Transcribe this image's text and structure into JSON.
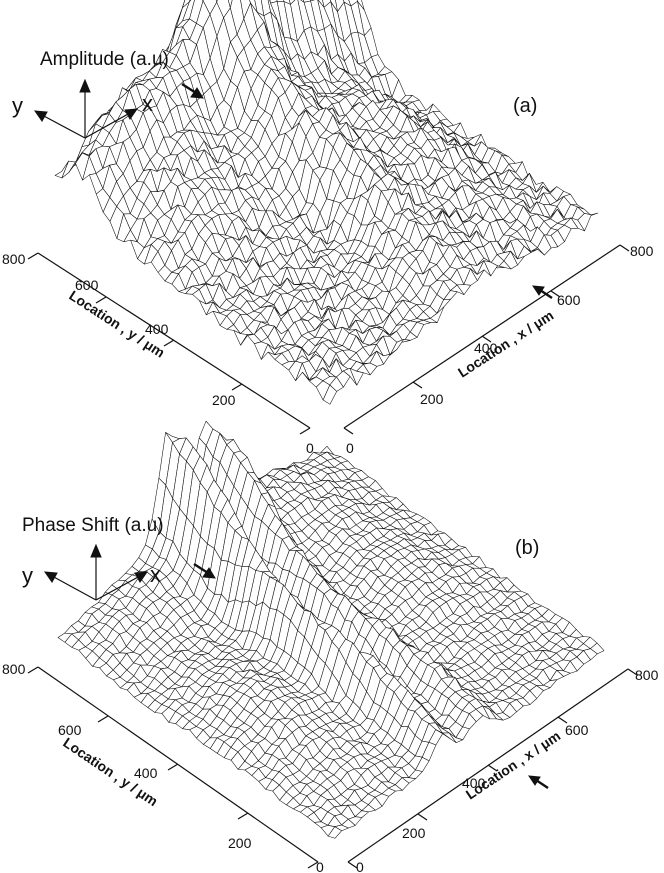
{
  "chart_data": [
    {
      "type": "surface",
      "panel": "(a)",
      "z_label": "Amplitude (a.u)",
      "direction_labels": {
        "x": "x",
        "y": "y"
      },
      "xlabel": "Location , x / μm",
      "ylabel": "Location , y / μm",
      "xlim": [
        0,
        800
      ],
      "ylim": [
        0,
        800
      ],
      "x_ticks": [
        "0",
        "200",
        "400",
        "600",
        "800"
      ],
      "y_ticks": [
        "0",
        "200",
        "400",
        "600",
        "800"
      ],
      "grid_size": 40,
      "features": [
        {
          "kind": "ridge",
          "x_um": 470,
          "y_um": 650,
          "height": 0.95
        },
        {
          "kind": "ridge",
          "x_um": 640,
          "y_um": 790,
          "height": 1.0
        },
        {
          "kind": "plateau",
          "x_um": 300,
          "y_um": 720,
          "height": 0.55
        },
        {
          "kind": "crack",
          "x_um": 360,
          "y_um": 380,
          "height": 0.35
        }
      ],
      "markers": [
        "arrow at y edge",
        "arrow at x ≈ 420 μm"
      ]
    },
    {
      "type": "surface",
      "panel": "(b)",
      "z_label": "Phase Shift (a.u)",
      "direction_labels": {
        "x": "x",
        "y": "y"
      },
      "xlabel": "Location , x / μm",
      "ylabel": "Location , y / μm",
      "xlim": [
        0,
        800
      ],
      "ylim": [
        0,
        800
      ],
      "x_ticks": [
        "0",
        "200",
        "400",
        "600",
        "800"
      ],
      "y_ticks": [
        "0",
        "200",
        "400",
        "600",
        "800"
      ],
      "grid_size": 40,
      "features": [
        {
          "kind": "ridge",
          "x_um": 380,
          "y_um": 700,
          "height": 1.0
        },
        {
          "kind": "ridge",
          "x_um": 470,
          "y_um": 700,
          "height": 0.85
        },
        {
          "kind": "trough",
          "x_um": 420,
          "y_um": 500,
          "height": 0.3
        }
      ],
      "markers": [
        "arrow at y edge",
        "arrow at x ≈ 420 μm"
      ]
    }
  ]
}
